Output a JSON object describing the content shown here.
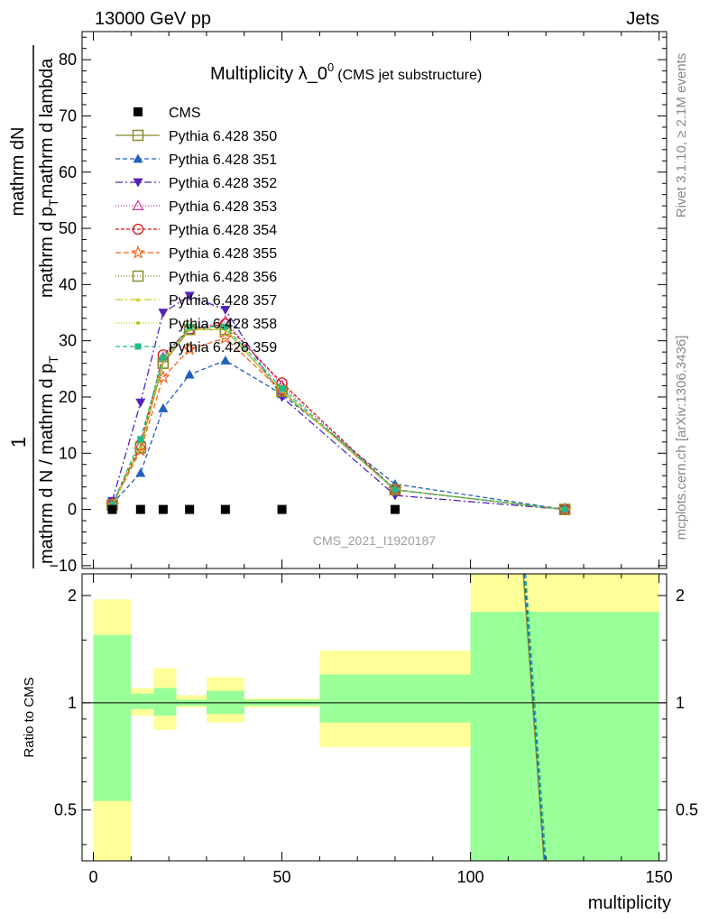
{
  "header": {
    "left": "13000 GeV pp",
    "right": "Jets"
  },
  "side_text": {
    "rivet": "Rivet 3.1.10, ≥ 2.1M events",
    "mcplots": "mcplots.cern.ch [arXiv:1306.3436]"
  },
  "colors": {
    "ratio_band_inner": "#99ff99",
    "ratio_band_outer": "#ffff99"
  },
  "chart_data": {
    "type": "line",
    "title_main": "Multiplicity λ_0",
    "title_sup": "0",
    "title_sub": "(CMS jet substructure)",
    "ylabel_parts": [
      "1",
      "mathrm d N / mathrm d p",
      "T",
      "mathrm d N",
      "mathrm d p",
      "T",
      "mathrm d lambda",
      "mathrm d"
    ],
    "ylabel_numerator": "1",
    "ylabel_denominator": "mathrm d N / mathrm d p",
    "ylabel_right_num": "mathrm d",
    "ylabel_right_den": "mathrm d p",
    "ylabel_right_den2": "mathrm d lambda",
    "ylabel_T": "T",
    "ylabel_N": "N",
    "ratio_ylabel": "Ratio to CMS",
    "xlabel": "multiplicity",
    "watermark": "CMS_2021_I1920187",
    "xlim": [
      -3,
      152
    ],
    "ylim": [
      -10.5,
      85
    ],
    "ratio_ylim": [
      0.36,
      2.3
    ],
    "x_ticks": [
      "0",
      "50",
      "100",
      "150"
    ],
    "y_ticks": [
      "−10",
      "0",
      "10",
      "20",
      "30",
      "40",
      "50",
      "60",
      "70",
      "80"
    ],
    "ratio_ticks": [
      "0.5",
      "1",
      "2"
    ],
    "ratio_tick_values": [
      0.5,
      1,
      2
    ],
    "x": [
      5,
      12.5,
      18.5,
      25.5,
      35,
      50,
      80,
      125
    ],
    "data": {
      "name": "CMS",
      "x": [
        5,
        12.5,
        18.5,
        25.5,
        35,
        50,
        80
      ],
      "y": [
        0,
        0,
        0,
        0,
        0,
        0,
        0
      ]
    },
    "series": [
      {
        "name": "Pythia 6.428 350",
        "color": "#8b8b2a",
        "dash": "",
        "marker": "square-open",
        "y": [
          0.8,
          11,
          26,
          32,
          32,
          21,
          3.5,
          0
        ]
      },
      {
        "name": "Pythia 6.428 351",
        "color": "#1f5fbf",
        "dash": "5,3",
        "marker": "triangle-up",
        "y": [
          1.0,
          6.5,
          18,
          24,
          26.5,
          20.5,
          4.5,
          0
        ]
      },
      {
        "name": "Pythia 6.428 352",
        "color": "#5522bb",
        "dash": "8,3,2,3",
        "marker": "triangle-down",
        "y": [
          1.5,
          19,
          35,
          38,
          35.5,
          20,
          2.5,
          0
        ]
      },
      {
        "name": "Pythia 6.428 353",
        "color": "#cc3399",
        "dash": "1,2",
        "marker": "triangle-open",
        "y": [
          0.8,
          11.5,
          27,
          32,
          33.5,
          22,
          3.5,
          0
        ]
      },
      {
        "name": "Pythia 6.428 354",
        "color": "#dd1111",
        "dash": "4,2",
        "marker": "circle-open",
        "y": [
          0.8,
          11.5,
          27.5,
          32,
          33,
          22.5,
          3.5,
          0
        ]
      },
      {
        "name": "Pythia 6.428 355",
        "color": "#ee6622",
        "dash": "6,3",
        "marker": "star-open",
        "y": [
          0.8,
          10.5,
          23.5,
          28.5,
          30.5,
          21,
          3.5,
          0
        ]
      },
      {
        "name": "Pythia 6.428 356",
        "color": "#8b8b2a",
        "dash": "1,2",
        "marker": "square-open",
        "y": [
          0.8,
          11,
          26,
          32,
          32,
          21,
          3.5,
          0
        ]
      },
      {
        "name": "Pythia 6.428 357",
        "color": "#cccc22",
        "dash": "8,3,2,3",
        "marker": "tri-small",
        "y": [
          0.8,
          11,
          26.5,
          32,
          32,
          21,
          3.5,
          0
        ]
      },
      {
        "name": "Pythia 6.428 358",
        "color": "#aacc22",
        "dash": "1,2",
        "marker": "dot",
        "y": [
          0.8,
          11,
          26.5,
          32,
          32,
          21,
          3.5,
          0
        ]
      },
      {
        "name": "Pythia 6.428 359",
        "color": "#22bb88",
        "dash": "5,3",
        "marker": "square-filled",
        "y": [
          0.8,
          12.5,
          27,
          32.5,
          32.5,
          21.5,
          3.5,
          0
        ]
      }
    ],
    "ratio_bands": [
      {
        "x": [
          0,
          10
        ],
        "outer": [
          0.3,
          1.95
        ],
        "inner": [
          0.53,
          1.55
        ]
      },
      {
        "x": [
          10,
          16
        ],
        "outer": [
          0.92,
          1.1
        ],
        "inner": [
          0.96,
          1.06
        ]
      },
      {
        "x": [
          16,
          22
        ],
        "outer": [
          0.84,
          1.25
        ],
        "inner": [
          0.92,
          1.1
        ]
      },
      {
        "x": [
          22,
          30
        ],
        "outer": [
          0.97,
          1.05
        ],
        "inner": [
          0.98,
          1.02
        ]
      },
      {
        "x": [
          30,
          40
        ],
        "outer": [
          0.88,
          1.18
        ],
        "inner": [
          0.93,
          1.08
        ]
      },
      {
        "x": [
          40,
          60
        ],
        "outer": [
          0.97,
          1.03
        ],
        "inner": [
          0.98,
          1.02
        ]
      },
      {
        "x": [
          60,
          100
        ],
        "outer": [
          0.75,
          1.4
        ],
        "inner": [
          0.88,
          1.2
        ]
      },
      {
        "x": [
          100,
          150
        ],
        "outer": [
          0.3,
          2.5
        ],
        "inner": [
          0.3,
          1.8
        ]
      }
    ],
    "ratio_lines": [
      {
        "color": "#8b8b2a",
        "dash": "",
        "x": [
          114.0,
          119.5
        ],
        "y": [
          2.3,
          0.36
        ]
      },
      {
        "color": "#1f5fbf",
        "dash": "5,3",
        "x": [
          114.3,
          119.7
        ],
        "y": [
          2.3,
          0.36
        ]
      },
      {
        "color": "#22bb88",
        "dash": "5,3",
        "x": [
          114.6,
          120.0
        ],
        "y": [
          2.3,
          0.36
        ]
      }
    ]
  }
}
